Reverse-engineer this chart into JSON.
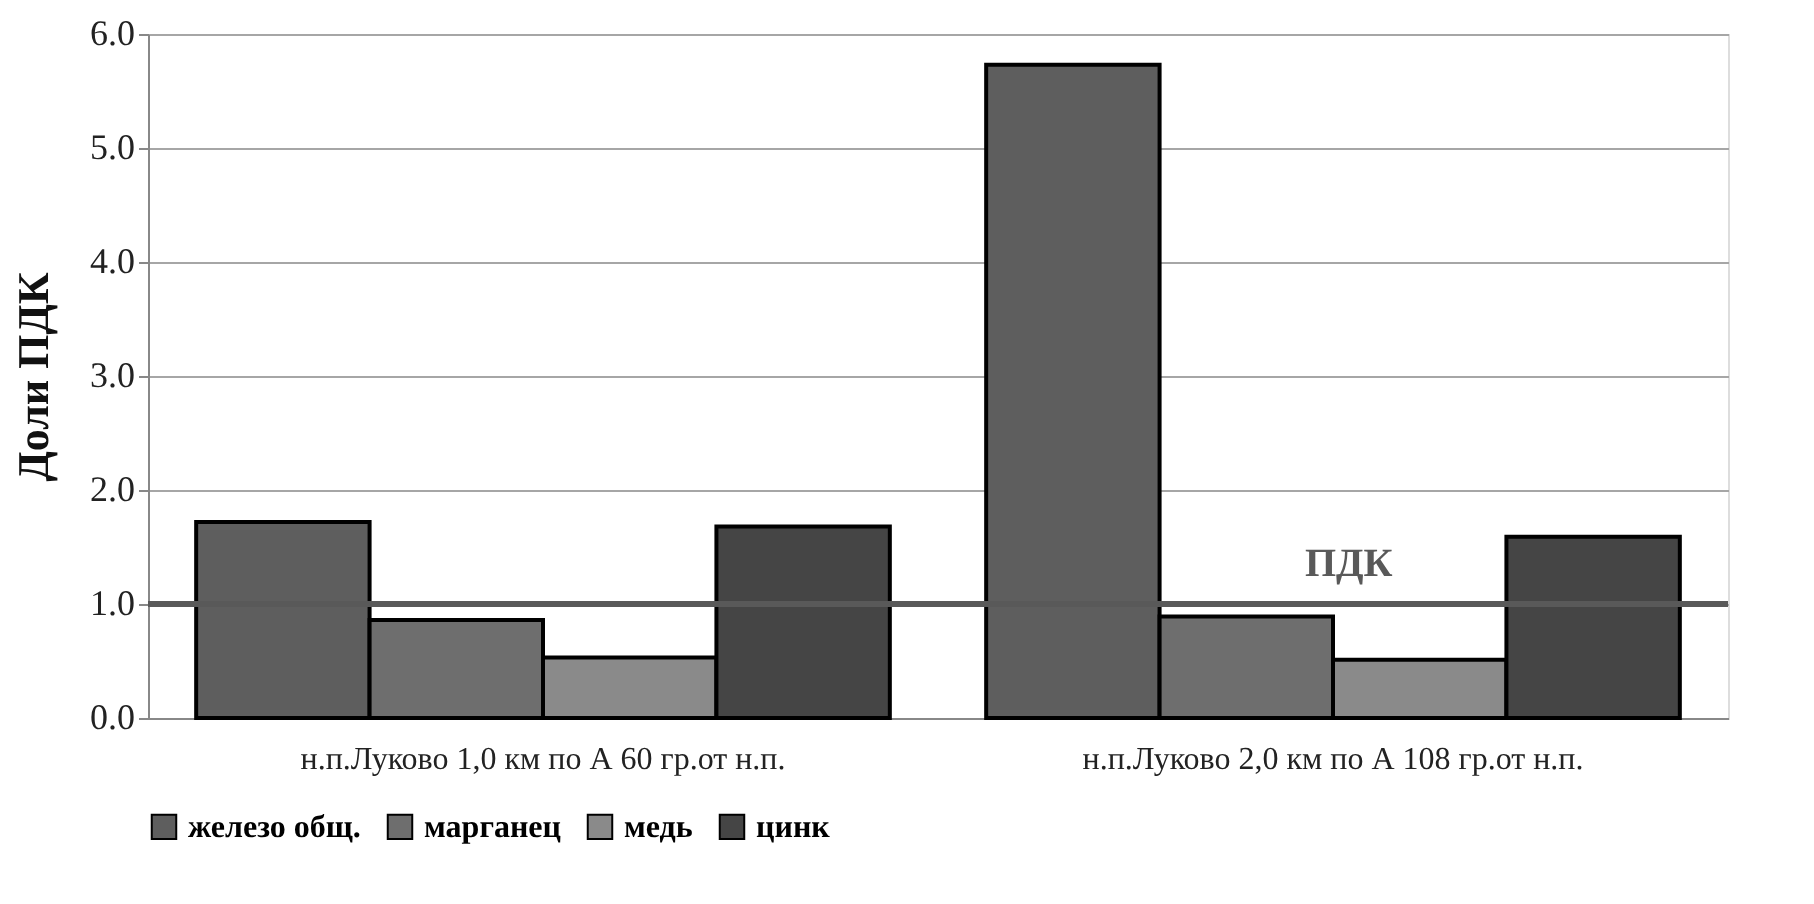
{
  "chart_data": {
    "type": "bar",
    "ylabel": "Доли ПДК",
    "categories": [
      "н.п.Луково  1,0 км по А 60 гр.от н.п.",
      "н.п.Луково 2,0 км по А 108 гр.от н.п."
    ],
    "series": [
      {
        "name": "железо общ.",
        "color": "#5e5e5e",
        "values": [
          1.72,
          5.73
        ]
      },
      {
        "name": "марганец",
        "color": "#6e6e6e",
        "values": [
          0.86,
          0.89
        ]
      },
      {
        "name": "медь",
        "color": "#8a8a8a",
        "values": [
          0.53,
          0.51
        ]
      },
      {
        "name": "цинк",
        "color": "#454545",
        "values": [
          1.68,
          1.59
        ]
      }
    ],
    "ylim": [
      0,
      6
    ],
    "yticks": [
      {
        "value": 0,
        "label": "0.0"
      },
      {
        "value": 1,
        "label": "1.0"
      },
      {
        "value": 2,
        "label": "2.0"
      },
      {
        "value": 3,
        "label": "3.0"
      },
      {
        "value": 4,
        "label": "4.0"
      },
      {
        "value": 5,
        "label": "5.0"
      },
      {
        "value": 6,
        "label": "6.0"
      }
    ],
    "grid": "y",
    "legend": "bottom",
    "ref_lines": [
      {
        "axis": "y",
        "value": 1,
        "label": "ПДК",
        "color": "#595959"
      }
    ]
  }
}
